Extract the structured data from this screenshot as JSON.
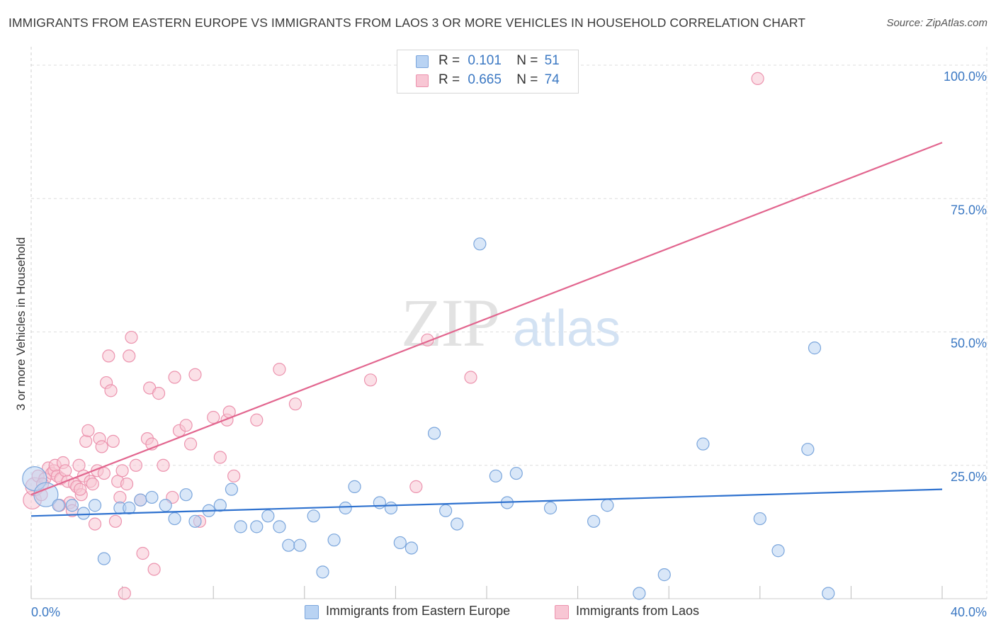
{
  "title": "IMMIGRANTS FROM EASTERN EUROPE VS IMMIGRANTS FROM LAOS 3 OR MORE VEHICLES IN HOUSEHOLD CORRELATION CHART",
  "source": "Source: ZipAtlas.com",
  "watermark": {
    "zip": "ZIP",
    "atlas": "atlas"
  },
  "colors": {
    "blue_fill": "#b9d3f3",
    "blue_stroke": "#7ba6dc",
    "blue_line": "#2f72cf",
    "pink_fill": "#f8c6d4",
    "pink_stroke": "#ec93ae",
    "pink_line": "#e2668f",
    "axis_text": "#3b78c3",
    "grid": "#dddddd"
  },
  "legend": {
    "r_label": "R =",
    "n_label": "N =",
    "blue": {
      "r": "0.101",
      "n": "51"
    },
    "pink": {
      "r": "0.665",
      "n": "74"
    }
  },
  "chart_data": {
    "type": "scatter",
    "title": "IMMIGRANTS FROM EASTERN EUROPE VS IMMIGRANTS FROM LAOS 3 OR MORE VEHICLES IN HOUSEHOLD CORRELATION CHART",
    "xlabel": "",
    "ylabel": "3 or more Vehicles in Household",
    "xlim": [
      0,
      40
    ],
    "ylim": [
      0,
      102
    ],
    "x_tick_labels": {
      "min": "0.0%",
      "max": "40.0%"
    },
    "y_ticks": [
      {
        "value": 25,
        "label": "25.0%"
      },
      {
        "value": 50,
        "label": "50.0%"
      },
      {
        "value": 75,
        "label": "75.0%"
      },
      {
        "value": 100,
        "label": "100.0%"
      }
    ],
    "grid": true,
    "legend_position": "top-center",
    "series": [
      {
        "name": "Immigrants from Eastern Europe",
        "color": "blue",
        "trend": {
          "x": [
            0,
            40
          ],
          "y": [
            15.5,
            20.5
          ]
        },
        "points": [
          {
            "x": 0.15,
            "y": 22.5,
            "s": 2
          },
          {
            "x": 0.65,
            "y": 19.5,
            "s": 2
          },
          {
            "x": 1.2,
            "y": 17.5
          },
          {
            "x": 1.8,
            "y": 17.5
          },
          {
            "x": 2.3,
            "y": 16.0
          },
          {
            "x": 2.8,
            "y": 17.5
          },
          {
            "x": 3.2,
            "y": 7.5
          },
          {
            "x": 3.9,
            "y": 17.0
          },
          {
            "x": 4.3,
            "y": 17.0
          },
          {
            "x": 4.8,
            "y": 18.5
          },
          {
            "x": 5.3,
            "y": 19.0
          },
          {
            "x": 5.9,
            "y": 17.5
          },
          {
            "x": 6.3,
            "y": 15.0
          },
          {
            "x": 6.8,
            "y": 19.5
          },
          {
            "x": 7.2,
            "y": 14.5
          },
          {
            "x": 7.8,
            "y": 16.5
          },
          {
            "x": 8.3,
            "y": 17.5
          },
          {
            "x": 8.8,
            "y": 20.5
          },
          {
            "x": 9.2,
            "y": 13.5
          },
          {
            "x": 9.9,
            "y": 13.5
          },
          {
            "x": 10.4,
            "y": 15.5
          },
          {
            "x": 10.9,
            "y": 13.5
          },
          {
            "x": 11.3,
            "y": 10.0
          },
          {
            "x": 11.8,
            "y": 10.0
          },
          {
            "x": 12.4,
            "y": 15.5
          },
          {
            "x": 12.8,
            "y": 5.0
          },
          {
            "x": 13.3,
            "y": 11.0
          },
          {
            "x": 13.8,
            "y": 17.0
          },
          {
            "x": 14.2,
            "y": 21.0
          },
          {
            "x": 15.3,
            "y": 18.0
          },
          {
            "x": 15.8,
            "y": 17.0
          },
          {
            "x": 16.2,
            "y": 10.5
          },
          {
            "x": 16.7,
            "y": 9.5
          },
          {
            "x": 17.7,
            "y": 31.0
          },
          {
            "x": 18.2,
            "y": 16.5
          },
          {
            "x": 18.7,
            "y": 14.0
          },
          {
            "x": 19.7,
            "y": 66.5
          },
          {
            "x": 20.4,
            "y": 23.0
          },
          {
            "x": 20.9,
            "y": 18.0
          },
          {
            "x": 21.3,
            "y": 23.5
          },
          {
            "x": 22.8,
            "y": 17.0
          },
          {
            "x": 24.7,
            "y": 14.5
          },
          {
            "x": 25.3,
            "y": 17.5
          },
          {
            "x": 26.7,
            "y": 1.0
          },
          {
            "x": 27.8,
            "y": 4.5
          },
          {
            "x": 29.5,
            "y": 29.0
          },
          {
            "x": 32.0,
            "y": 15.0
          },
          {
            "x": 32.8,
            "y": 9.0
          },
          {
            "x": 34.1,
            "y": 28.0
          },
          {
            "x": 34.4,
            "y": 47.0
          },
          {
            "x": 35.0,
            "y": 1.0
          }
        ]
      },
      {
        "name": "Immigrants from Laos",
        "color": "pink",
        "trend": {
          "x": [
            0,
            40
          ],
          "y": [
            19.5,
            85.5
          ]
        },
        "points": [
          {
            "x": 0.05,
            "y": 18.5,
            "s": 1.5
          },
          {
            "x": 0.15,
            "y": 21.0,
            "s": 1.5
          },
          {
            "x": 0.3,
            "y": 23.0
          },
          {
            "x": 0.45,
            "y": 19.5
          },
          {
            "x": 0.6,
            "y": 22.5
          },
          {
            "x": 0.75,
            "y": 24.5
          },
          {
            "x": 0.9,
            "y": 23.5
          },
          {
            "x": 1.0,
            "y": 24.0
          },
          {
            "x": 1.05,
            "y": 25.0
          },
          {
            "x": 1.15,
            "y": 23.0
          },
          {
            "x": 1.3,
            "y": 22.5
          },
          {
            "x": 1.4,
            "y": 25.5
          },
          {
            "x": 1.5,
            "y": 24.0
          },
          {
            "x": 1.6,
            "y": 22.0
          },
          {
            "x": 1.7,
            "y": 18.0
          },
          {
            "x": 1.8,
            "y": 16.5
          },
          {
            "x": 1.9,
            "y": 21.5
          },
          {
            "x": 2.0,
            "y": 21.0
          },
          {
            "x": 2.1,
            "y": 25.0
          },
          {
            "x": 2.2,
            "y": 19.5
          },
          {
            "x": 2.3,
            "y": 23.0
          },
          {
            "x": 2.4,
            "y": 29.5
          },
          {
            "x": 2.5,
            "y": 31.5
          },
          {
            "x": 2.6,
            "y": 22.0
          },
          {
            "x": 2.7,
            "y": 21.5
          },
          {
            "x": 2.8,
            "y": 14.0
          },
          {
            "x": 2.9,
            "y": 24.0
          },
          {
            "x": 3.0,
            "y": 30.0
          },
          {
            "x": 3.1,
            "y": 28.5
          },
          {
            "x": 3.2,
            "y": 23.5
          },
          {
            "x": 3.3,
            "y": 40.5
          },
          {
            "x": 3.4,
            "y": 45.5
          },
          {
            "x": 3.5,
            "y": 39.0
          },
          {
            "x": 3.6,
            "y": 29.5
          },
          {
            "x": 3.7,
            "y": 14.5
          },
          {
            "x": 3.8,
            "y": 22.0
          },
          {
            "x": 3.9,
            "y": 19.0
          },
          {
            "x": 4.0,
            "y": 24.0
          },
          {
            "x": 4.1,
            "y": 1.0
          },
          {
            "x": 4.2,
            "y": 21.5
          },
          {
            "x": 4.3,
            "y": 45.5
          },
          {
            "x": 4.4,
            "y": 49.0
          },
          {
            "x": 4.6,
            "y": 25.0
          },
          {
            "x": 4.8,
            "y": 18.5
          },
          {
            "x": 4.9,
            "y": 8.5
          },
          {
            "x": 5.1,
            "y": 30.0
          },
          {
            "x": 5.2,
            "y": 39.5
          },
          {
            "x": 5.3,
            "y": 29.0
          },
          {
            "x": 5.4,
            "y": 5.5
          },
          {
            "x": 5.6,
            "y": 38.5
          },
          {
            "x": 5.8,
            "y": 25.0
          },
          {
            "x": 6.2,
            "y": 19.0
          },
          {
            "x": 6.3,
            "y": 41.5
          },
          {
            "x": 6.5,
            "y": 31.5
          },
          {
            "x": 6.8,
            "y": 32.5
          },
          {
            "x": 7.0,
            "y": 29.0
          },
          {
            "x": 7.2,
            "y": 42.0
          },
          {
            "x": 7.4,
            "y": 14.5
          },
          {
            "x": 8.0,
            "y": 34.0
          },
          {
            "x": 8.3,
            "y": 26.5
          },
          {
            "x": 8.6,
            "y": 33.5
          },
          {
            "x": 8.7,
            "y": 35.0
          },
          {
            "x": 8.9,
            "y": 23.0
          },
          {
            "x": 9.9,
            "y": 33.5
          },
          {
            "x": 10.9,
            "y": 43.0
          },
          {
            "x": 11.6,
            "y": 36.5
          },
          {
            "x": 14.9,
            "y": 41.0
          },
          {
            "x": 16.9,
            "y": 21.0
          },
          {
            "x": 17.4,
            "y": 48.5
          },
          {
            "x": 19.3,
            "y": 41.5
          },
          {
            "x": 31.9,
            "y": 97.5
          },
          {
            "x": 0.5,
            "y": 21.5
          },
          {
            "x": 1.25,
            "y": 17.5
          },
          {
            "x": 2.15,
            "y": 20.5
          }
        ]
      }
    ]
  },
  "bottom_legend": {
    "blue": "Immigrants from Eastern Europe",
    "pink": "Immigrants from Laos"
  }
}
